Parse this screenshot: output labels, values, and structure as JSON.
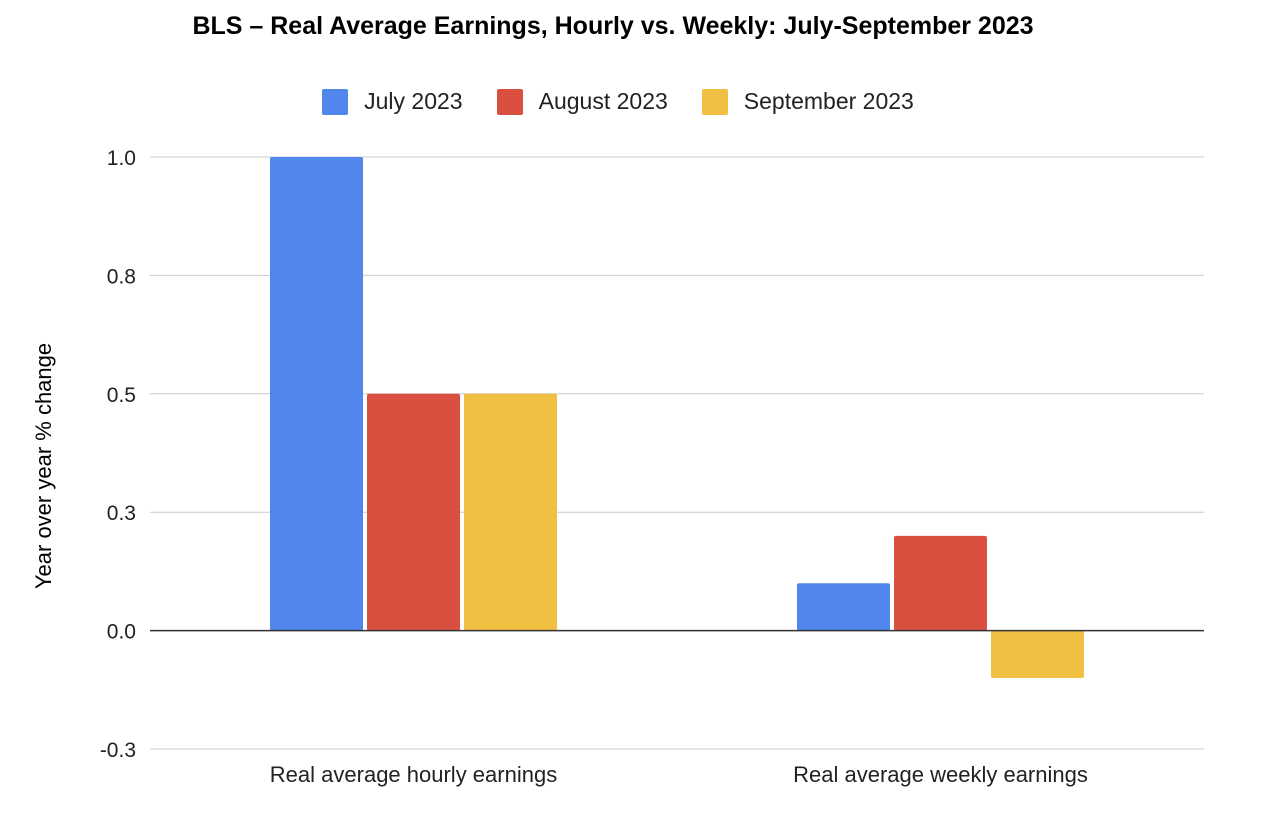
{
  "chart_data": {
    "type": "bar",
    "title": "BLS – Real Average Earnings, Hourly vs. Weekly: July-September 2023",
    "xlabel": "",
    "ylabel": "Year over year % change",
    "categories": [
      "Real average hourly earnings",
      "Real average weekly earnings"
    ],
    "series": [
      {
        "name": "July 2023",
        "color": "#5186EC",
        "values": [
          1.0,
          0.1
        ]
      },
      {
        "name": "August 2023",
        "color": "#D95040",
        "values": [
          0.5,
          0.2
        ]
      },
      {
        "name": "September 2023",
        "color": "#F1BF42",
        "values": [
          0.5,
          -0.1
        ]
      }
    ],
    "ylim": [
      -0.25,
      1.0
    ],
    "yticks": [
      1.0,
      0.75,
      0.5,
      0.25,
      0.0,
      -0.25
    ],
    "ytick_labels": [
      "1.0",
      "0.8",
      "0.5",
      "0.3",
      "0.0",
      "-0.3"
    ],
    "grid": true,
    "legend_position": "top-center"
  }
}
